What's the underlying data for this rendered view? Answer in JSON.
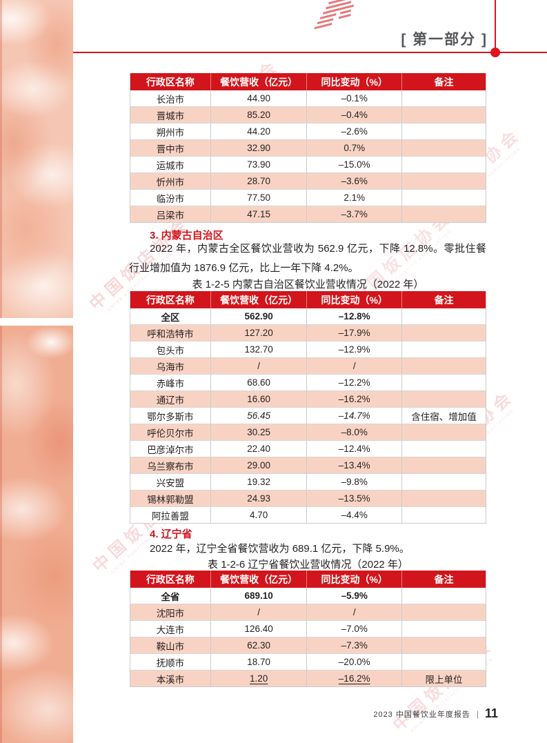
{
  "header": {
    "section_label": "[ 第一部分 ]"
  },
  "watermark": {
    "cn": "中国饭店协会",
    "en": "CHINA HOSPITALITY ASSOCIATION"
  },
  "sections": {
    "s3": {
      "heading": "3. 内蒙古自治区",
      "paragraph": "2022 年，内蒙古全区餐饮业营收为 562.9 亿元，下降 12.8%。零批住餐行业增加值为 1876.9 亿元，比上一年下降 4.2%。",
      "table_caption": "表 1-2-5  内蒙古自治区餐饮业营收情况（2022 年）"
    },
    "s4": {
      "heading": "4. 辽宁省",
      "paragraph": "2022 年，辽宁全省餐饮营收为 689.1 亿元，下降 5.9%。",
      "table_caption": "表 1-2-6  辽宁省餐饮业营收情况（2022 年）"
    }
  },
  "tables": [
    {
      "name": "shanxi-cities-revenue",
      "columns": [
        "行政区名称",
        "餐饮营收（亿元）",
        "同比变动（%）",
        "备注"
      ],
      "rows": [
        {
          "cells": [
            "长治市",
            "44.90",
            "–0.1%",
            ""
          ]
        },
        {
          "cells": [
            "晋城市",
            "85.20",
            "–0.4%",
            ""
          ]
        },
        {
          "cells": [
            "朔州市",
            "44.20",
            "–2.6%",
            ""
          ]
        },
        {
          "cells": [
            "晋中市",
            "32.90",
            "0.7%",
            ""
          ]
        },
        {
          "cells": [
            "运城市",
            "73.90",
            "–15.0%",
            ""
          ]
        },
        {
          "cells": [
            "忻州市",
            "28.70",
            "–3.6%",
            ""
          ]
        },
        {
          "cells": [
            "临汾市",
            "77.50",
            "2.1%",
            ""
          ]
        },
        {
          "cells": [
            "吕梁市",
            "47.15",
            "–3.7%",
            ""
          ]
        }
      ]
    },
    {
      "name": "inner-mongolia-revenue",
      "columns": [
        "行政区名称",
        "餐饮营收（亿元）",
        "同比变动（%）",
        "备注"
      ],
      "rows": [
        {
          "cells": [
            "全区",
            "562.90",
            "–12.8%",
            ""
          ],
          "bold": true
        },
        {
          "cells": [
            "呼和浩特市",
            "127.20",
            "–17.9%",
            ""
          ]
        },
        {
          "cells": [
            "包头市",
            "132.70",
            "–12.9%",
            ""
          ]
        },
        {
          "cells": [
            "乌海市",
            "/",
            "/",
            ""
          ]
        },
        {
          "cells": [
            "赤峰市",
            "68.60",
            "–12.2%",
            ""
          ]
        },
        {
          "cells": [
            "通辽市",
            "16.60",
            "–16.2%",
            ""
          ]
        },
        {
          "cells": [
            "鄂尔多斯市",
            "56.45",
            "–14.7%",
            "含住宿、增加值"
          ],
          "value_style": "italic"
        },
        {
          "cells": [
            "呼伦贝尔市",
            "30.25",
            "–8.0%",
            ""
          ]
        },
        {
          "cells": [
            "巴彦淖尔市",
            "22.40",
            "–12.4%",
            ""
          ]
        },
        {
          "cells": [
            "乌兰察布市",
            "29.00",
            "–13.4%",
            ""
          ]
        },
        {
          "cells": [
            "兴安盟",
            "19.32",
            "–9.8%",
            ""
          ]
        },
        {
          "cells": [
            "锡林郭勒盟",
            "24.93",
            "–13.5%",
            ""
          ]
        },
        {
          "cells": [
            "阿拉善盟",
            "4.70",
            "–4.4%",
            ""
          ]
        }
      ]
    },
    {
      "name": "liaoning-revenue",
      "columns": [
        "行政区名称",
        "餐饮营收（亿元）",
        "同比变动（%）",
        "备注"
      ],
      "rows": [
        {
          "cells": [
            "全省",
            "689.10",
            "–5.9%",
            ""
          ],
          "bold": true
        },
        {
          "cells": [
            "沈阳市",
            "/",
            "/",
            ""
          ]
        },
        {
          "cells": [
            "大连市",
            "126.40",
            "–7.0%",
            ""
          ]
        },
        {
          "cells": [
            "鞍山市",
            "62.30",
            "–7.3%",
            ""
          ]
        },
        {
          "cells": [
            "抚顺市",
            "18.70",
            "–20.0%",
            ""
          ]
        },
        {
          "cells": [
            "本溪市",
            "1.20",
            "–16.2%",
            "限上单位"
          ],
          "value_style": "underline"
        }
      ]
    }
  ],
  "footer": {
    "report_title": "2023 中国餐饮业年度报告",
    "divider": "|",
    "page_number": "11"
  },
  "colors": {
    "accent_red": "#d2151c",
    "row_pink": "#f8d3c4",
    "header_label_gray": "#55565a",
    "body_text": "#231f20"
  }
}
